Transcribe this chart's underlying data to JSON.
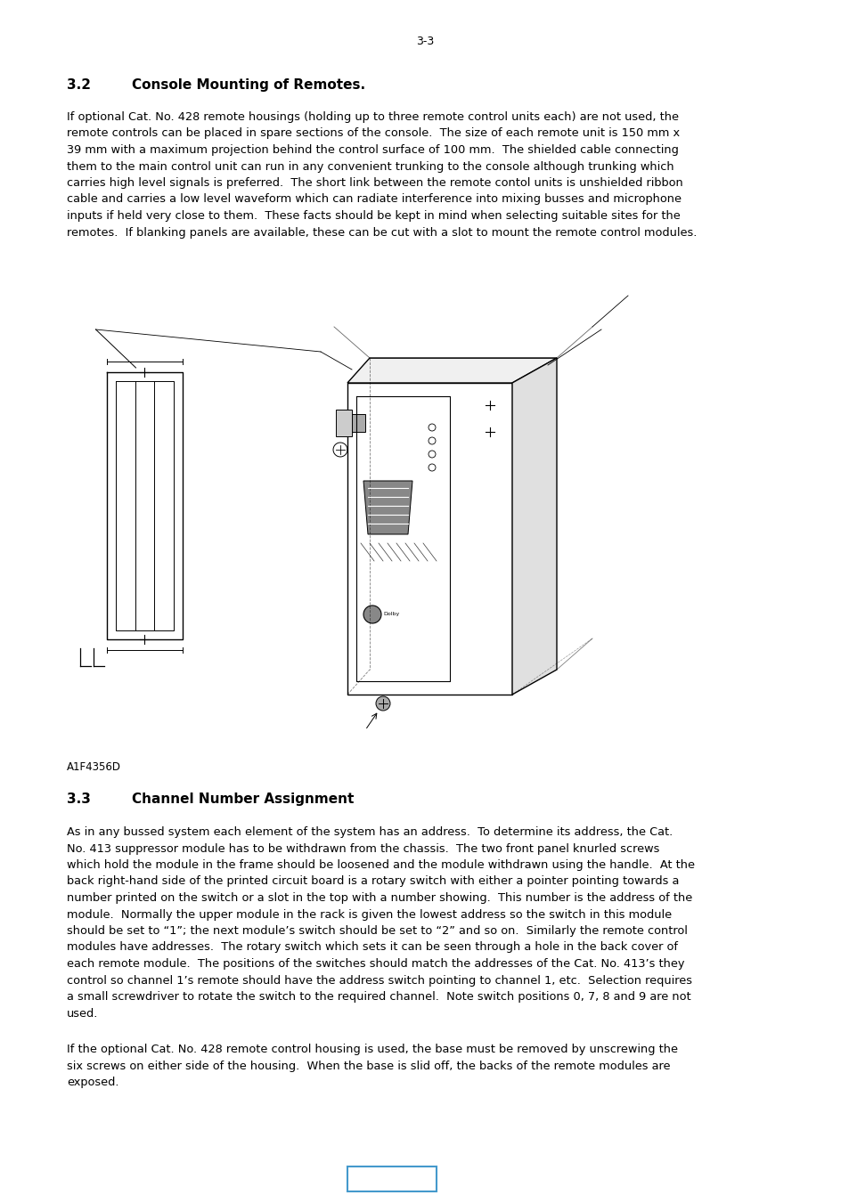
{
  "page_number": "3-3",
  "section_2_heading_num": "3.2",
  "section_2_heading_text": "Console Mounting of Remotes.",
  "section_2_body": "If optional Cat. No. 428 remote housings (holding up to three remote control units each) are not used, the\nremote controls can be placed in spare sections of the console.  The size of each remote unit is 150 mm x\n39 mm with a maximum projection behind the control surface of 100 mm.  The shielded cable connecting\nthem to the main control unit can run in any convenient trunking to the console although trunking which\ncarries high level signals is preferred.  The short link between the remote contol units is unshielded ribbon\ncable and carries a low level waveform which can radiate interference into mixing busses and microphone\ninputs if held very close to them.  These facts should be kept in mind when selecting suitable sites for the\nremotes.  If blanking panels are available, these can be cut with a slot to mount the remote control modules.",
  "figure_label": "A1F4356D",
  "section_3_heading_num": "3.3",
  "section_3_heading_text": "Channel Number Assignment",
  "section_3_body1": "As in any bussed system each element of the system has an address.  To determine its address, the Cat.\nNo. 413 suppressor module has to be withdrawn from the chassis.  The two front panel knurled screws\nwhich hold the module in the frame should be loosened and the module withdrawn using the handle.  At the\nback right-hand side of the printed circuit board is a rotary switch with either a pointer pointing towards a\nnumber printed on the switch or a slot in the top with a number showing.  This number is the address of the\nmodule.  Normally the upper module in the rack is given the lowest address so the switch in this module\nshould be set to “1”; the next module’s switch should be set to “2” and so on.  Similarly the remote control\nmodules have addresses.  The rotary switch which sets it can be seen through a hole in the back cover of\neach remote module.  The positions of the switches should match the addresses of the Cat. No. 413’s they\ncontrol so channel 1’s remote should have the address switch pointing to channel 1, etc.  Selection requires\na small screwdriver to rotate the switch to the required channel.  Note switch positions 0, 7, 8 and 9 are not\nused.",
  "section_3_body2": "If the optional Cat. No. 428 remote control housing is used, the base must be removed by unscrewing the\nsix screws on either side of the housing.  When the base is slid off, the backs of the remote modules are\nexposed.",
  "bg_color": "#ffffff",
  "text_color": "#000000",
  "box_color": "#4499cc"
}
